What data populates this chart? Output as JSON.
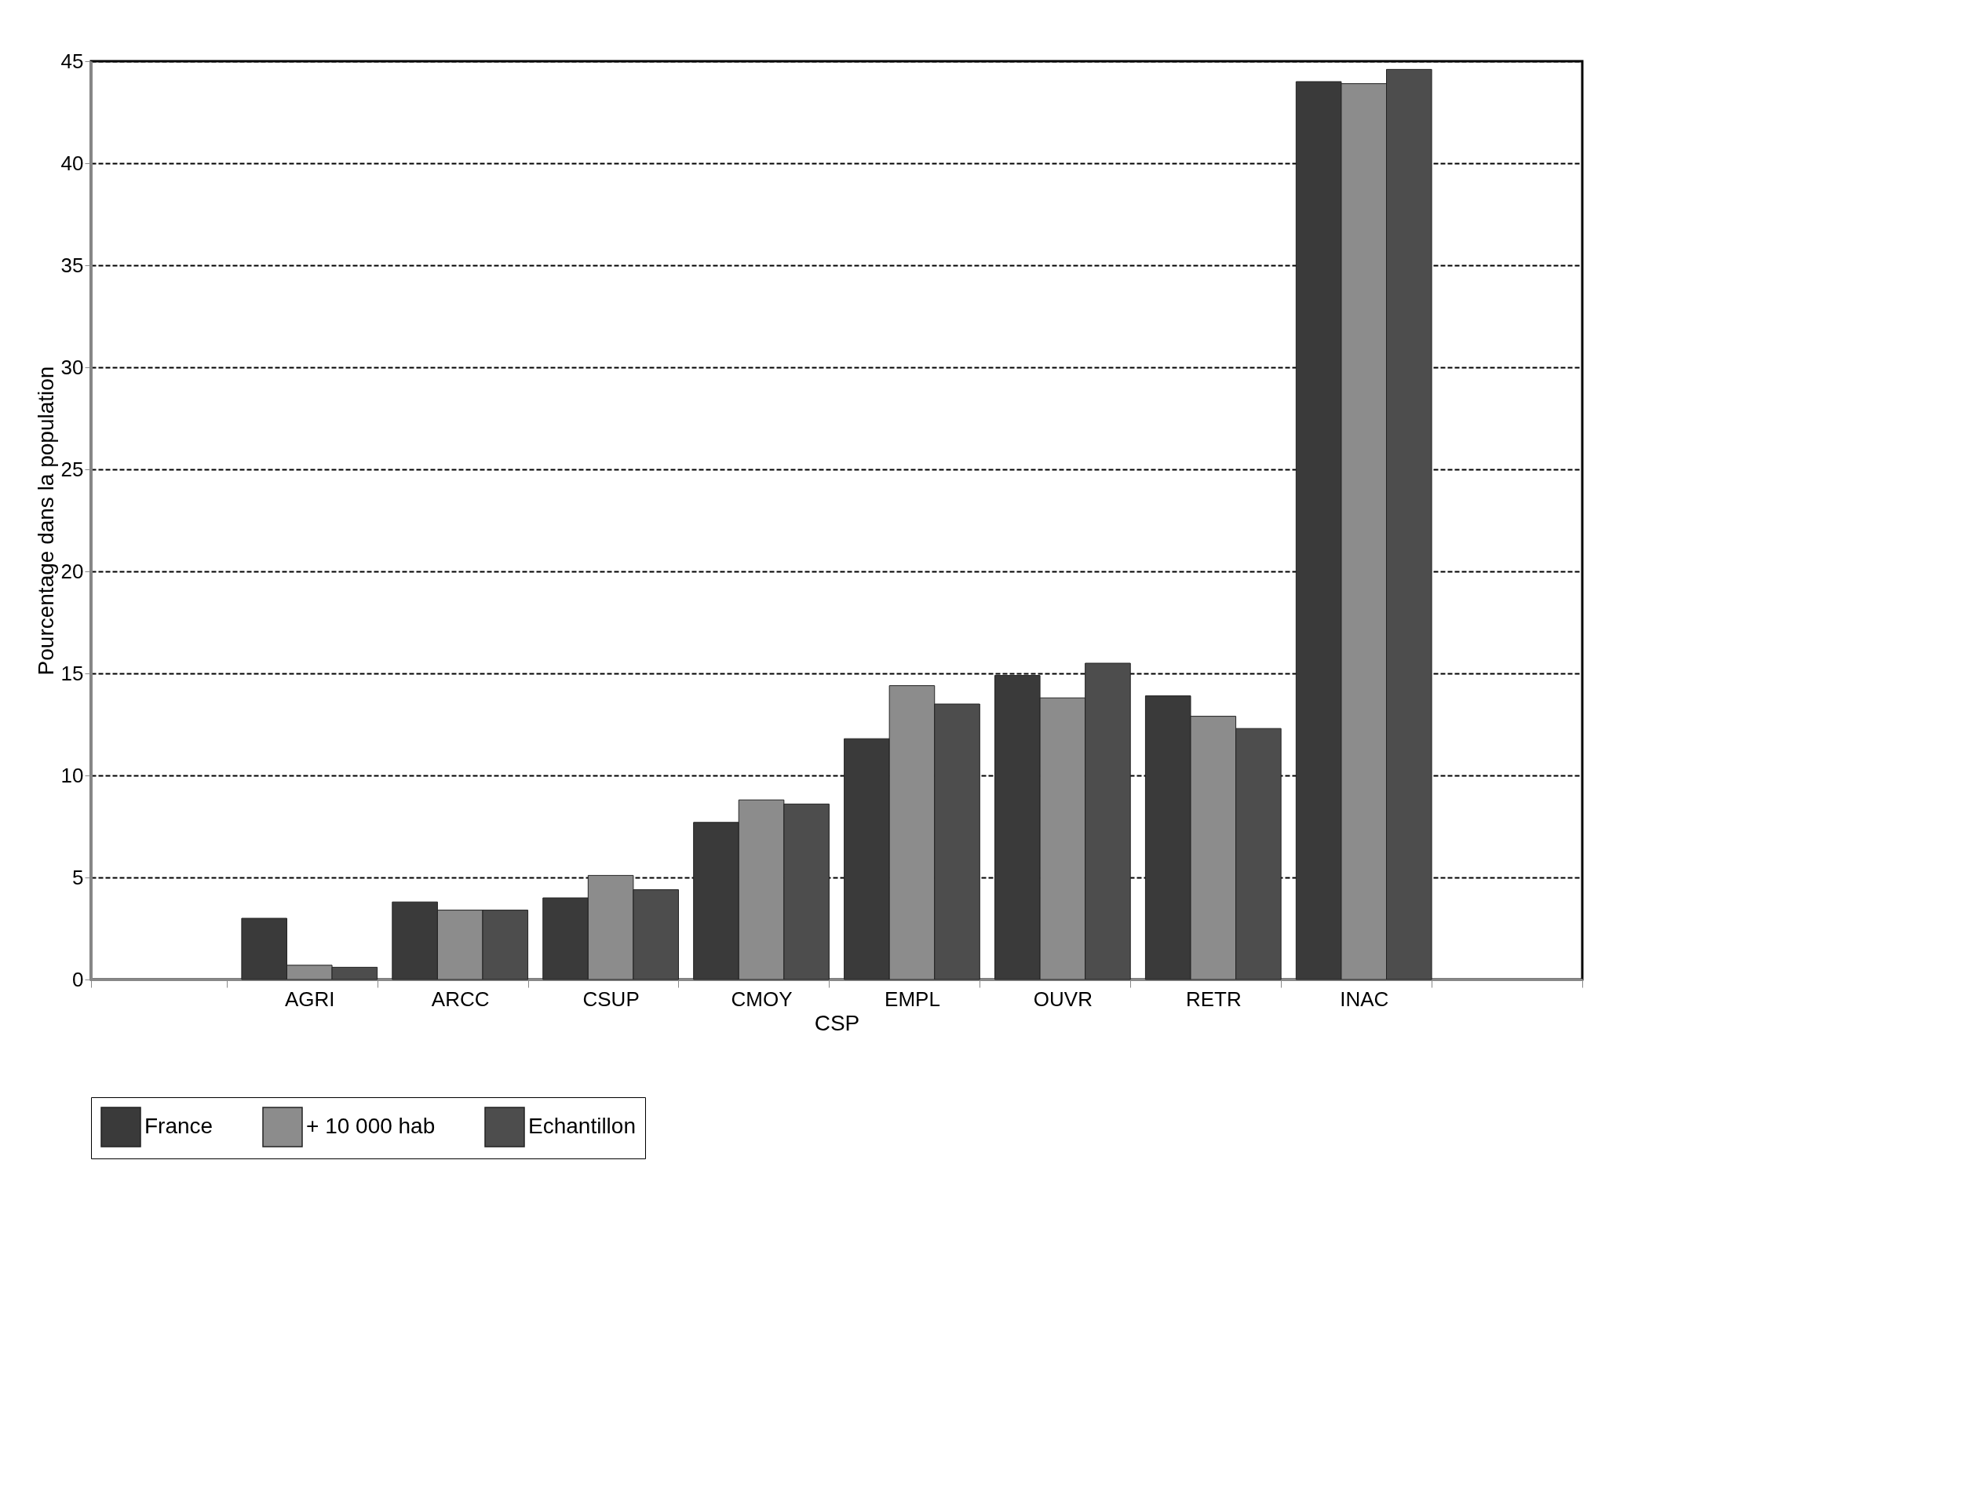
{
  "chart_data": {
    "type": "bar",
    "xlabel": "CSP",
    "ylabel": "Pourcentage dans la population",
    "categories": [
      null,
      "AGRI",
      "ARCC",
      "CSUP",
      "CMOY",
      "EMPL",
      "OUVR",
      "RETR",
      "INAC",
      null
    ],
    "series": [
      {
        "name": "France",
        "color": "#3a3a3a",
        "values": [
          null,
          3.0,
          3.8,
          4.0,
          7.7,
          11.8,
          14.9,
          13.9,
          44.0,
          null
        ]
      },
      {
        "name": "+ 10 000 hab",
        "color": "#8c8c8c",
        "values": [
          null,
          0.7,
          3.4,
          5.1,
          8.8,
          14.4,
          13.8,
          12.9,
          43.9,
          null
        ]
      },
      {
        "name": "Echantillon",
        "color": "#4d4d4d",
        "values": [
          null,
          0.6,
          3.4,
          4.4,
          8.6,
          13.5,
          15.5,
          12.3,
          44.6,
          null
        ]
      }
    ],
    "ylim": [
      0,
      45
    ],
    "yticks": [
      0,
      5,
      10,
      15,
      20,
      25,
      30,
      35,
      40,
      45
    ],
    "grid": "y",
    "legend": "bottom"
  }
}
